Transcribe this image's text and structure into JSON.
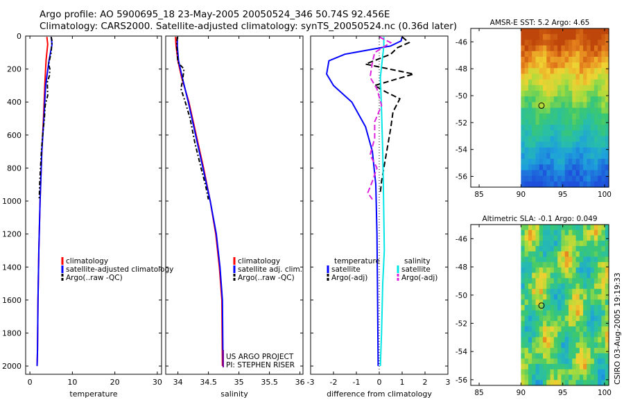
{
  "header": {
    "line1": "Argo profile: AO 5900695_18 23-May-2005 20050524_346 50.74S 92.456E",
    "line2": "Climatology: CARS2000. Satellite-adjusted climatology: synTS_20050524.nc (0.36d later)"
  },
  "timestamp": "CSIRO 03-Aug-2005 19:19:33",
  "colors": {
    "climatology": "#ff0000",
    "satellite": "#0000ff",
    "argo": "#000000",
    "salinity_sat": "#00e5e5",
    "salinity_argo": "#dd22dd"
  },
  "chart_data": [
    {
      "type": "line",
      "name": "temperature-panel",
      "xlabel": "temperature",
      "ylabel": "",
      "xlim": [
        -1,
        31
      ],
      "ylim": [
        2050,
        0
      ],
      "xticks": [
        0,
        10,
        20,
        30
      ],
      "yticks": [
        0,
        200,
        400,
        600,
        800,
        1000,
        1200,
        1400,
        1600,
        1800,
        2000
      ],
      "legend": [
        "climatology",
        "satellite-adjusted climatology",
        "Argo(..raw -QC)"
      ],
      "series": [
        {
          "name": "climatology",
          "color": "#ff0000",
          "dash": "",
          "x": [
            4.0,
            4.2,
            3.8,
            3.5,
            3.2,
            2.8,
            2.4,
            2.1,
            1.9,
            1.8,
            1.7
          ],
          "y": [
            5,
            50,
            150,
            300,
            500,
            700,
            1000,
            1300,
            1600,
            1900,
            2000
          ]
        },
        {
          "name": "satellite-adjusted climatology",
          "color": "#0000ff",
          "dash": "",
          "x": [
            5.0,
            5.2,
            4.5,
            3.7,
            3.3,
            2.8,
            2.4,
            2.1,
            1.9,
            1.8,
            1.7
          ],
          "y": [
            5,
            50,
            150,
            300,
            500,
            700,
            1000,
            1300,
            1600,
            1900,
            2000
          ]
        },
        {
          "name": "Argo(..raw -QC)",
          "color": "#000000",
          "dash": "6,3,2,3",
          "x": [
            5.0,
            5.2,
            5.0,
            4.4,
            4.7,
            4.6,
            4.1,
            4.2,
            3.6,
            3.4,
            3.0,
            2.7,
            2.5,
            2.3,
            2.2
          ],
          "y": [
            5,
            30,
            100,
            170,
            200,
            240,
            280,
            360,
            420,
            500,
            600,
            700,
            800,
            900,
            990
          ]
        }
      ]
    },
    {
      "type": "line",
      "name": "salinity-panel",
      "xlabel": "salinity",
      "xlim": [
        33.8,
        36.05
      ],
      "ylim": [
        2050,
        0
      ],
      "xticks": [
        34,
        34.5,
        35,
        35.5,
        36
      ],
      "legend": [
        "climatology",
        "satellite adj. clim.",
        "Argo(..raw -QC)"
      ],
      "series": [
        {
          "name": "climatology",
          "color": "#ff0000",
          "dash": "",
          "x": [
            33.96,
            33.97,
            34.0,
            34.06,
            34.18,
            34.3,
            34.42,
            34.53,
            34.62,
            34.68,
            34.72,
            34.73
          ],
          "y": [
            5,
            60,
            150,
            250,
            400,
            600,
            800,
            1000,
            1200,
            1400,
            1600,
            2000
          ]
        },
        {
          "name": "satellite adj. clim.",
          "color": "#0000ff",
          "dash": "",
          "x": [
            33.99,
            33.99,
            34.01,
            34.07,
            34.17,
            34.29,
            34.41,
            34.53,
            34.63,
            34.69,
            34.73,
            34.74
          ],
          "y": [
            5,
            60,
            150,
            250,
            400,
            600,
            800,
            1000,
            1200,
            1400,
            1600,
            2000
          ]
        },
        {
          "name": "Argo(..raw -QC)",
          "color": "#000000",
          "dash": "6,3,2,3",
          "x": [
            33.99,
            33.98,
            34.0,
            34.1,
            34.08,
            34.05,
            34.12,
            34.2,
            34.28,
            34.38,
            34.45,
            34.5
          ],
          "y": [
            5,
            60,
            160,
            200,
            260,
            320,
            400,
            500,
            650,
            800,
            900,
            990
          ]
        }
      ]
    },
    {
      "type": "line",
      "name": "difference-panel",
      "xlabel": "difference from climatology",
      "xlim": [
        -3,
        3
      ],
      "ylim": [
        2050,
        0
      ],
      "xticks": [
        -3,
        -2,
        -1,
        0,
        1,
        2,
        3
      ],
      "legend_left": [
        "temperature",
        "satellite",
        "Argo(-adj)"
      ],
      "legend_right": [
        "salinity",
        "satellite",
        "Argo(-adj)"
      ],
      "series": [
        {
          "name": "temperature satellite",
          "color": "#0000ff",
          "dash": "",
          "x": [
            1.0,
            0.95,
            0.5,
            -1.5,
            -2.2,
            -2.3,
            -2.0,
            -1.2,
            -0.6,
            -0.3,
            -0.15,
            -0.1,
            -0.08,
            -0.06,
            -0.05
          ],
          "y": [
            5,
            30,
            60,
            110,
            150,
            230,
            300,
            400,
            550,
            700,
            900,
            1200,
            1500,
            1800,
            2000
          ]
        },
        {
          "name": "temperature Argo(-adj)",
          "color": "#000000",
          "dash": "8,4",
          "x": [
            1.0,
            1.3,
            0.8,
            0.5,
            -0.6,
            1.5,
            -0.2,
            0.3,
            0.9,
            0.6,
            0.5,
            0.4,
            0.3,
            0.2,
            0.1,
            0.05
          ],
          "y": [
            5,
            40,
            70,
            110,
            170,
            230,
            300,
            340,
            380,
            460,
            560,
            640,
            720,
            800,
            880,
            950
          ]
        },
        {
          "name": "salinity satellite",
          "color": "#00e5e5",
          "dash": "",
          "x": [
            0.2,
            0.2,
            0.15,
            0.05,
            0.1,
            0.15,
            0.18,
            0.2,
            0.22,
            0.15,
            0.1,
            0.05
          ],
          "y": [
            5,
            60,
            120,
            250,
            450,
            700,
            900,
            1100,
            1300,
            1500,
            1800,
            2000
          ]
        },
        {
          "name": "salinity Argo(-adj)",
          "color": "#dd22dd",
          "dash": "8,4",
          "x": [
            0.0,
            0.5,
            -0.2,
            -0.3,
            -0.4,
            -0.1,
            0.1,
            -0.2,
            -0.2,
            -0.4,
            -0.1,
            -0.3,
            -0.5,
            -0.3
          ],
          "y": [
            5,
            40,
            100,
            160,
            250,
            320,
            420,
            520,
            620,
            720,
            800,
            880,
            950,
            990
          ]
        }
      ]
    }
  ],
  "maps": [
    {
      "name": "sst-map",
      "title": "AMSR-E SST: 5.2 Argo: 4.65",
      "xticks": [
        85,
        90,
        95,
        100
      ],
      "yticks": [
        -46,
        -48,
        -50,
        -52,
        -54,
        -56
      ],
      "xlim": [
        84,
        100.5
      ],
      "ylim": [
        -45,
        -56.8
      ],
      "data_xlim": [
        90,
        100.5
      ],
      "marker": {
        "lon": 92.456,
        "lat": -50.74
      }
    },
    {
      "name": "sla-map",
      "title": "Altimetric SLA: -0.1 Argo: 0.049",
      "xticks": [
        85,
        90,
        95,
        100
      ],
      "yticks": [
        -46,
        -48,
        -50,
        -52,
        -54,
        -56
      ],
      "xlim": [
        84,
        100.5
      ],
      "ylim": [
        -45,
        -56.4
      ],
      "data_xlim": [
        90,
        100.5
      ],
      "marker": {
        "lon": 92.456,
        "lat": -50.74
      }
    }
  ],
  "project": {
    "line1": "US ARGO PROJECT",
    "line2": "PI: STEPHEN RISER"
  }
}
